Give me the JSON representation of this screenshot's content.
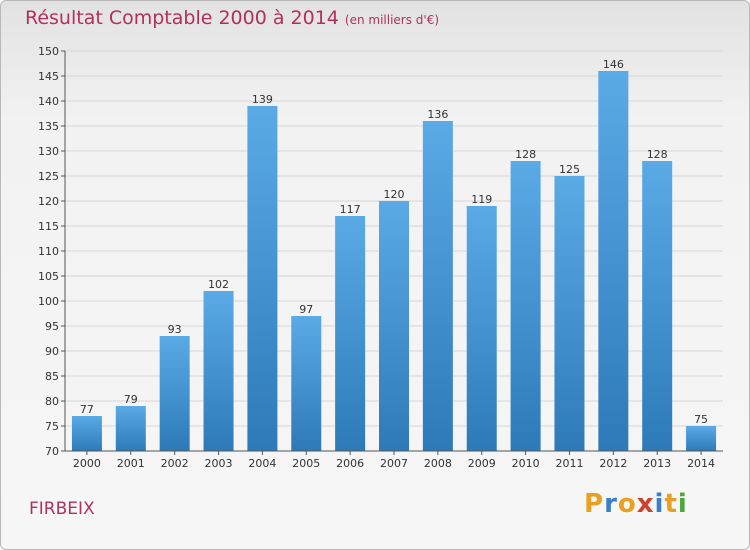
{
  "title": "Résultat Comptable 2000 à 2014",
  "unit": "(en milliers d'€)",
  "commune": "FIRBEIX",
  "logo": {
    "text": "Proxiti",
    "colors": [
      "#e8a020",
      "#3a7dc8",
      "#e8a020",
      "#d0402a",
      "#3a7dc8",
      "#e8a020",
      "#4aa838"
    ]
  },
  "colors": {
    "bar_top": "#5aaae6",
    "bar_bottom": "#2e7ab8",
    "text_accent": "#b03060"
  },
  "chart_data": {
    "type": "bar",
    "categories": [
      "2000",
      "2001",
      "2002",
      "2003",
      "2004",
      "2005",
      "2006",
      "2007",
      "2008",
      "2009",
      "2010",
      "2011",
      "2012",
      "2013",
      "2014"
    ],
    "values": [
      77,
      79,
      93,
      102,
      139,
      97,
      117,
      120,
      136,
      119,
      128,
      125,
      146,
      128,
      75
    ],
    "ylim": [
      70,
      150
    ],
    "yticks": [
      70,
      75,
      80,
      85,
      90,
      95,
      100,
      105,
      110,
      115,
      120,
      125,
      130,
      135,
      140,
      145,
      150
    ],
    "grid": true
  }
}
